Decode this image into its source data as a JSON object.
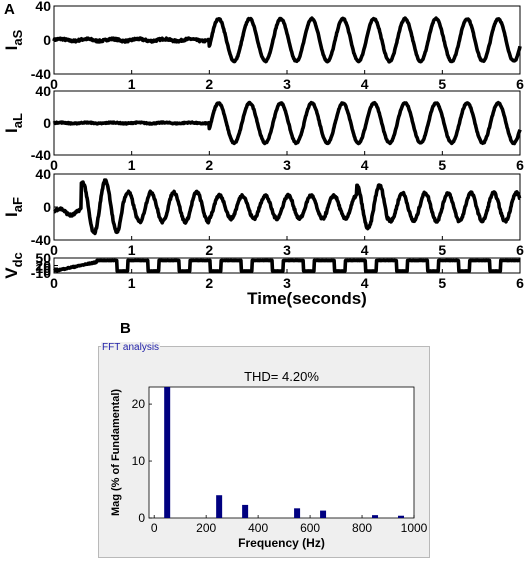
{
  "figure": {
    "panel_labels": [
      "A",
      "B"
    ]
  },
  "chart_data": [
    {
      "type": "line",
      "xlabel": "",
      "ylabel": "I_aS",
      "ylabel_main": "I",
      "ylabel_sub": "aS",
      "xlim": [
        0,
        6
      ],
      "ylim": [
        -40,
        40
      ],
      "xticks": [
        "0",
        "1",
        "2",
        "3",
        "4",
        "5",
        "6"
      ],
      "yticks": [
        "40",
        "0",
        "-40"
      ],
      "ytick_values": [
        40,
        0,
        -40
      ],
      "series": [
        {
          "description_model": "small noise about 0 (amplitude ~2) for t<2, then sinusoid amplitude 25 at 2.5 Hz for t>=2",
          "pre_amplitude": 2,
          "amplitude": 25,
          "frequency_hz": 2.5,
          "onset_s": 2
        }
      ]
    },
    {
      "type": "line",
      "xlabel": "",
      "ylabel": "I_aL",
      "ylabel_main": "I",
      "ylabel_sub": "aL",
      "xlim": [
        0,
        6
      ],
      "ylim": [
        -40,
        40
      ],
      "xticks": [
        "0",
        "1",
        "2",
        "3",
        "4",
        "5",
        "6"
      ],
      "yticks": [
        "40",
        "0",
        "-40"
      ],
      "ytick_values": [
        40,
        0,
        -40
      ],
      "series": [
        {
          "pre_amplitude": 1,
          "amplitude": 25,
          "frequency_hz": 2.5,
          "onset_s": 2
        }
      ]
    },
    {
      "type": "line",
      "xlabel": "",
      "ylabel": "I_aF",
      "ylabel_main": "I",
      "ylabel_sub": "aF",
      "xlim": [
        0,
        6
      ],
      "ylim": [
        -40,
        40
      ],
      "xticks": [
        "0",
        "1",
        "2",
        "3",
        "4",
        "5",
        "6"
      ],
      "yticks": [
        "40",
        "0",
        "-40"
      ],
      "ytick_values": [
        40,
        0,
        -40
      ],
      "series": [
        {
          "amplitude_range": [
            10,
            32
          ],
          "frequency_hz": 3.4
        }
      ]
    },
    {
      "type": "line",
      "xlabel": "Time(seconds)",
      "ylabel": "V_dc",
      "ylabel_main": "V",
      "ylabel_sub": "dc",
      "xlim": [
        0,
        6
      ],
      "ylim": [
        -10,
        50
      ],
      "xticks": [
        "0",
        "1",
        "2",
        "3",
        "4",
        "5",
        "6"
      ],
      "yticks": [
        "50",
        "20",
        "10",
        "0",
        "-10"
      ],
      "ytick_values": [
        50,
        20,
        10,
        0,
        -10
      ],
      "series": [
        {
          "high_level": 40,
          "low_level": -2,
          "ramp_end_s": 0.55,
          "period_s": 0.4,
          "duty": 0.65
        }
      ]
    },
    {
      "type": "bar",
      "title": "THD= 4.20%",
      "window_title": "FFT analysis",
      "xlabel": "Frequency (Hz)",
      "ylabel": "Mag (% of Fundamental)",
      "xlim": [
        -20,
        1000
      ],
      "ylim": [
        0,
        23
      ],
      "xticks": [
        "0",
        "200",
        "400",
        "600",
        "800",
        "1000"
      ],
      "xtick_values": [
        0,
        200,
        400,
        600,
        800,
        1000
      ],
      "yticks": [
        "0",
        "10",
        "20"
      ],
      "ytick_values": [
        0,
        10,
        20
      ],
      "x": [
        50,
        250,
        350,
        550,
        650,
        850,
        950
      ],
      "values": [
        23,
        4.0,
        2.3,
        1.7,
        1.3,
        0.5,
        0.4
      ]
    }
  ]
}
